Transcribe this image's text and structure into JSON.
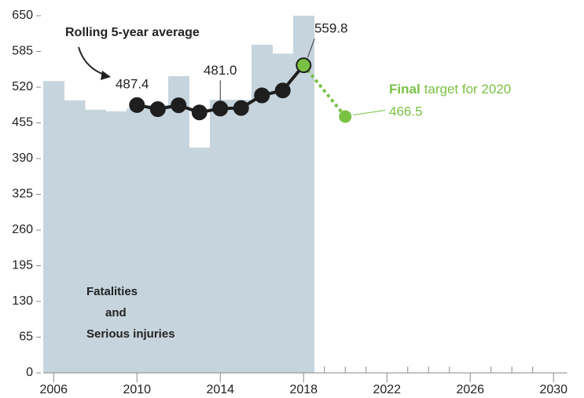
{
  "chart_data": {
    "type": "combo",
    "xlim": [
      2005.5,
      2030.5
    ],
    "xticks": [
      2006,
      2010,
      2014,
      2018,
      2022,
      2026,
      2030
    ],
    "xminorticks": [
      2019,
      2020,
      2021,
      2023,
      2024,
      2025,
      2027,
      2028,
      2029
    ],
    "ylim": [
      0,
      650
    ],
    "yticks": [
      0,
      65,
      130,
      195,
      260,
      325,
      390,
      455,
      520,
      585,
      650
    ],
    "series": [
      {
        "type": "bar",
        "label_lines": [
          "Fatalities",
          "and",
          "Serious injuries"
        ],
        "color": "#c6d4dd",
        "x": [
          2006,
          2007,
          2008,
          2009,
          2010,
          2011,
          2012,
          2013,
          2014,
          2015,
          2016,
          2017,
          2018
        ],
        "values": [
          531,
          496,
          479,
          476,
          481,
          487,
          540,
          410,
          497,
          497,
          597,
          581,
          650
        ]
      },
      {
        "type": "line",
        "name": "Rolling 5-year average",
        "color": "#1e1e1e",
        "highlight_color": "#7ac143",
        "x": [
          2010,
          2011,
          2012,
          2013,
          2014,
          2015,
          2016,
          2017,
          2018
        ],
        "values": [
          487.4,
          480,
          487,
          474,
          481.0,
          482,
          505,
          514,
          559.8
        ],
        "value_labels": [
          "487.4",
          null,
          null,
          null,
          "481.0",
          null,
          null,
          null,
          "559.8"
        ]
      }
    ],
    "target": {
      "label_parts": [
        "Final",
        "target for 2020"
      ],
      "x": 2020,
      "value": 466.5,
      "value_label": "466.5",
      "color": "#7ac143"
    }
  }
}
